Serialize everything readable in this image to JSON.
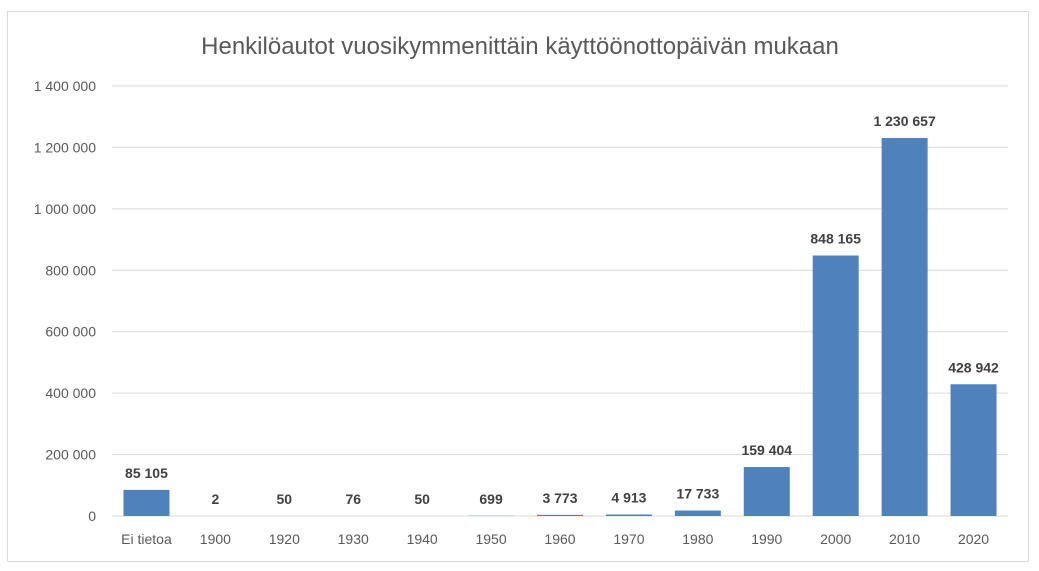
{
  "chart_data": {
    "type": "bar",
    "title": "Henkilöautot vuosikymmenittäin käyttöönottopäivän mukaan",
    "xlabel": "",
    "ylabel": "",
    "categories": [
      "Ei tietoa",
      "1900",
      "1920",
      "1930",
      "1940",
      "1950",
      "1960",
      "1970",
      "1980",
      "1990",
      "2000",
      "2010",
      "2020"
    ],
    "values": [
      85105,
      2,
      50,
      76,
      50,
      699,
      3773,
      4913,
      17733,
      159404,
      848165,
      1230657,
      428942
    ],
    "data_labels": [
      "85 105",
      "2",
      "50",
      "76",
      "50",
      "699",
      "3 773",
      "4 913",
      "17 733",
      "159 404",
      "848 165",
      "1 230 657",
      "428 942"
    ],
    "ylim": [
      0,
      1400000
    ],
    "yticks": [
      0,
      200000,
      400000,
      600000,
      800000,
      1000000,
      1200000,
      1400000
    ],
    "ytick_labels": [
      "0",
      "200 000",
      "400 000",
      "600 000",
      "800 000",
      "1 000 000",
      "1 200 000",
      "1 400 000"
    ],
    "grid": true,
    "legend": "none",
    "bar_color": "#4f81bd"
  }
}
